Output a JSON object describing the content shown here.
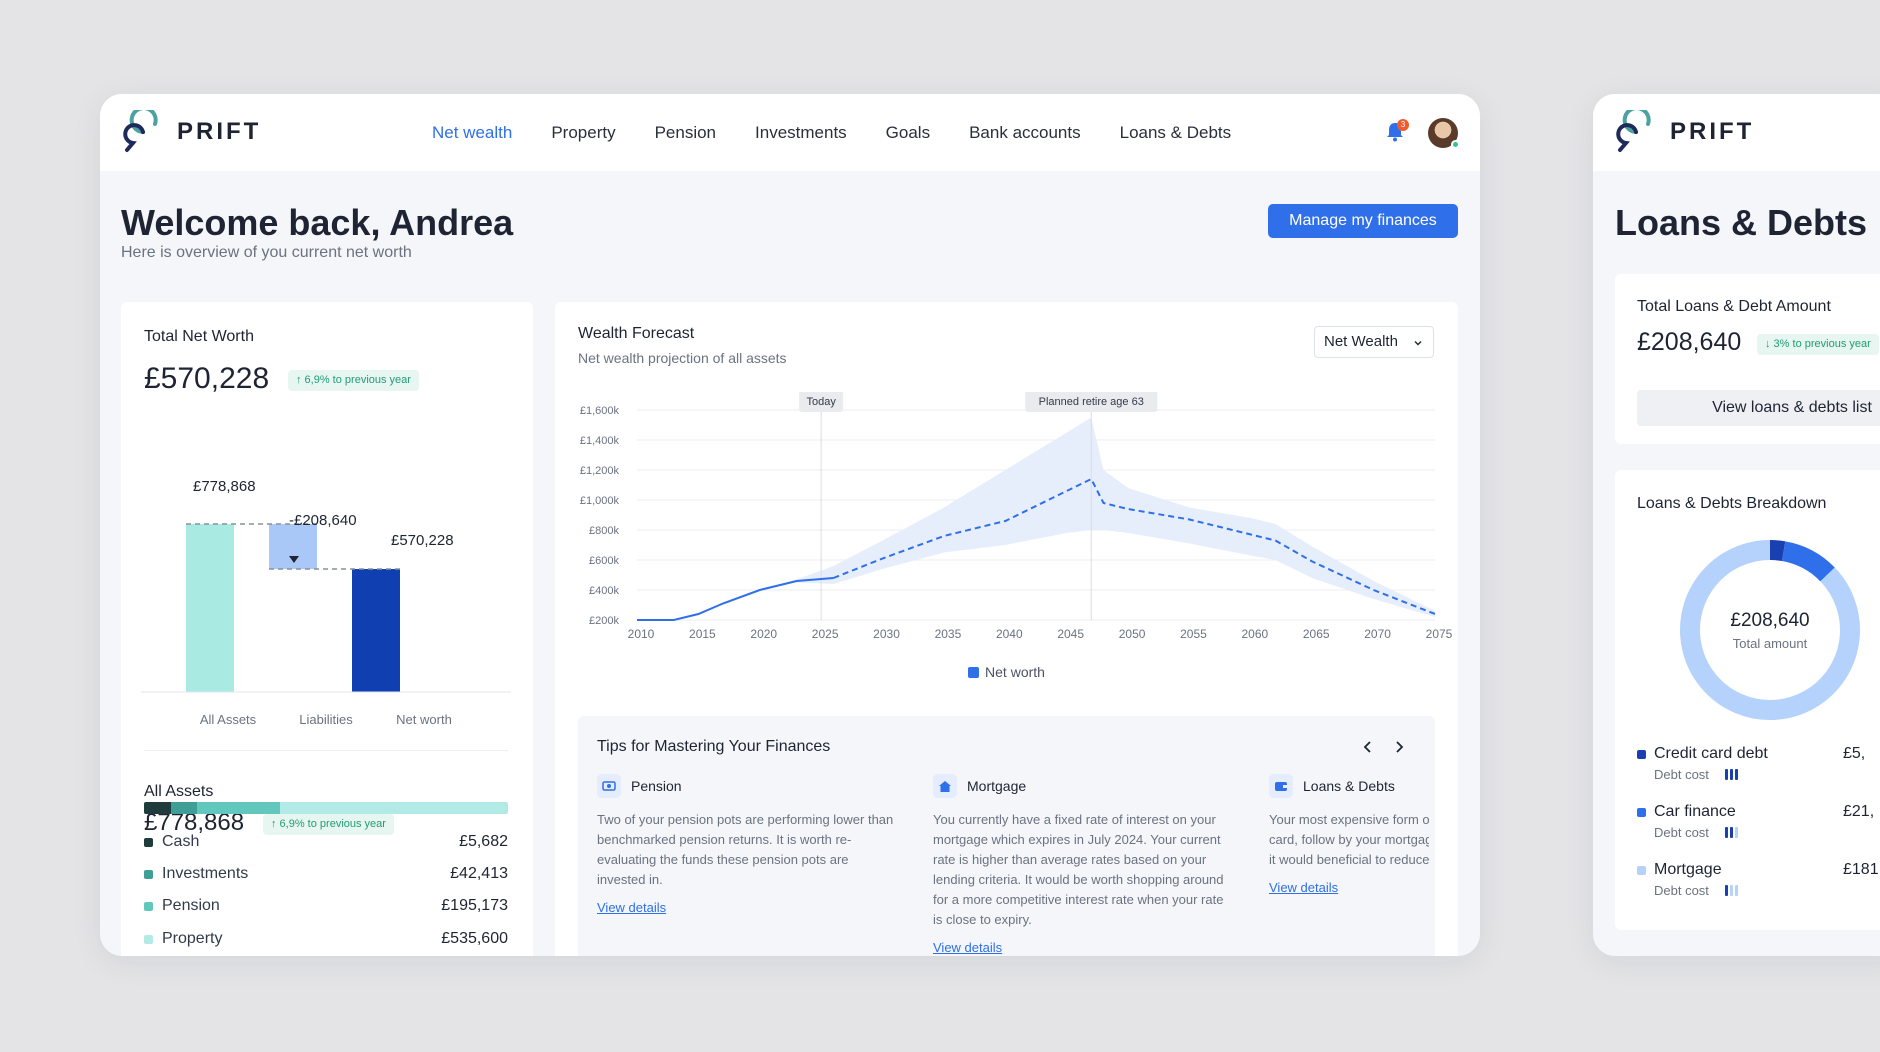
{
  "main": {
    "brand": "PRIFT",
    "nav": [
      "Net wealth",
      "Property",
      "Pension",
      "Investments",
      "Goals",
      "Bank accounts",
      "Loans & Debts"
    ],
    "notification_count": "3",
    "title": "Welcome back, Andrea",
    "subtitle": "Here is overview of you current net worth",
    "manage_button": "Manage my finances",
    "net_worth": {
      "title": "Total Net Worth",
      "value": "£570,228",
      "change": "↑ 6,9% to previous year",
      "waterfall": {
        "assets_label": "£778,868",
        "liabilities_label": "-£208,640",
        "net_label": "£570,228",
        "categories": [
          "All Assets",
          "Liabilities",
          "Net worth"
        ],
        "values": [
          778868,
          -208640,
          570228
        ]
      },
      "assets_title": "All Assets",
      "assets_value": "£778,868",
      "assets_change": "↑ 6,9% to previous year",
      "assets": [
        {
          "name": "Cash",
          "value": "£5,682",
          "amount": 5682,
          "color": "#1f3b3b"
        },
        {
          "name": "Investments",
          "value": "£42,413",
          "amount": 42413,
          "color": "#3f9e95"
        },
        {
          "name": "Pension",
          "value": "£195,173",
          "amount": 195173,
          "color": "#62c8bd"
        },
        {
          "name": "Property",
          "value": "£535,600",
          "amount": 535600,
          "color": "#b2ebe6"
        }
      ]
    },
    "forecast": {
      "title": "Wealth Forecast",
      "subtitle": "Net wealth projection of all assets",
      "select_value": "Net Wealth",
      "today_label": "Today",
      "retire_label": "Planned retire age 63",
      "legend": "Net worth",
      "y_ticks": [
        "£1,600k",
        "£1,400k",
        "£1,200k",
        "£1,000k",
        "£800k",
        "£600k",
        "£400k",
        "£200k"
      ],
      "x_ticks": [
        "2010",
        "2015",
        "2020",
        "2025",
        "2030",
        "2035",
        "2040",
        "2045",
        "2050",
        "2055",
        "2060",
        "2065",
        "2070",
        "2075"
      ]
    },
    "tips": {
      "title": "Tips for Mastering Your Finances",
      "items": [
        {
          "name": "Pension",
          "body": "Two of your pension pots are performing lower than benchmarked pension returns. It is worth re-evaluating the funds these pension pots are invested in.",
          "link": "View details"
        },
        {
          "name": "Mortgage",
          "body": "You currently have a fixed rate of interest on your mortgage which expires in July 2024. Your current rate is higher than average rates based on your lending criteria. It would be worth shopping around for a more competitive interest rate when your rate is close to expiry.",
          "link": "View details"
        },
        {
          "name": "Loans & Debts",
          "body": "Your most expensive form of debt is your credit card, follow by your mortgage. If you have a choice it would beneficial to reduce your credit card first.",
          "link": "View details"
        }
      ]
    }
  },
  "side": {
    "brand": "PRIFT",
    "title": "Loans & Debts",
    "total_title": "Total Loans & Debt Amount",
    "total_value": "£208,640",
    "total_change": "↓ 3% to previous year",
    "list_button": "View loans & debts list",
    "breakdown_title": "Loans & Debts Breakdown",
    "donut_value": "£208,640",
    "donut_label": "Total amount",
    "debts": [
      {
        "name": "Credit card debt",
        "value": "£5,",
        "cost_label": "Debt cost",
        "color": "#1a3fb0",
        "cost_level": 3
      },
      {
        "name": "Car finance",
        "value": "£21,",
        "cost_label": "Debt cost",
        "color": "#2f6fea",
        "cost_level": 2
      },
      {
        "name": "Mortgage",
        "value": "£181,",
        "cost_label": "Debt cost",
        "color": "#b4d2fb",
        "cost_level": 1
      }
    ]
  },
  "chart_data": [
    {
      "type": "bar",
      "title": "Total Net Worth",
      "categories": [
        "All Assets",
        "Liabilities",
        "Net worth"
      ],
      "values": [
        778868,
        -208640,
        570228
      ]
    },
    {
      "type": "line",
      "title": "Wealth Forecast",
      "series": [
        {
          "name": "Net worth",
          "x": [
            2010,
            2013,
            2015,
            2017,
            2020,
            2023,
            2026,
            2030,
            2035,
            2040,
            2045,
            2047,
            2048,
            2050,
            2055,
            2060,
            2062,
            2065,
            2070,
            2075
          ],
          "values": [
            200,
            200,
            240,
            310,
            400,
            460,
            480,
            610,
            760,
            860,
            1060,
            1140,
            980,
            940,
            870,
            770,
            730,
            590,
            400,
            240
          ]
        }
      ],
      "band_upper": [
        200,
        200,
        240,
        310,
        400,
        470,
        560,
        730,
        950,
        1200,
        1450,
        1550,
        1200,
        1080,
        950,
        880,
        840,
        690,
        460,
        260
      ],
      "band_lower": [
        200,
        200,
        240,
        310,
        400,
        450,
        440,
        540,
        650,
        700,
        780,
        800,
        800,
        780,
        710,
        630,
        600,
        480,
        340,
        220
      ],
      "ylim": [
        200,
        1600
      ],
      "xlim": [
        2010,
        2075
      ]
    },
    {
      "type": "pie",
      "title": "Loans & Debts Breakdown",
      "categories": [
        "Credit card debt",
        "Car finance",
        "Mortgage"
      ],
      "values": [
        5682,
        21000,
        181958
      ]
    }
  ]
}
